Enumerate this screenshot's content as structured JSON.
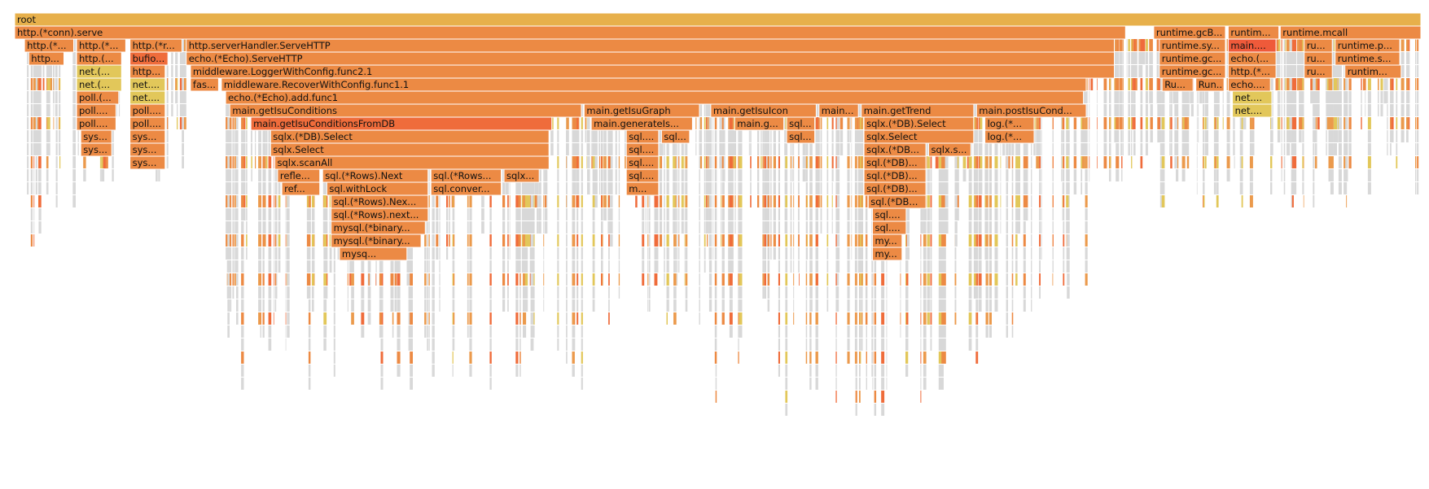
{
  "chart_data": {
    "type": "flamegraph",
    "title": "",
    "root": {
      "name": "root",
      "value": 1000
    },
    "colors": {
      "root": "#e7b04b",
      "frame": "#ec8a44",
      "frame_alt": "#eb9a4c",
      "frame_warm": "#ef6c3b",
      "frame_hot": "#ef5a3a",
      "frame_yellow": "#e2c75a",
      "sliver": "#d8d8d8"
    },
    "frames": [
      {
        "name": "root",
        "depth": 0,
        "start": 0,
        "value": 1000,
        "color": "root"
      },
      {
        "name": "http.(*conn).serve",
        "depth": 1,
        "start": 0,
        "value": 790,
        "color": "frame"
      },
      {
        "name": "runtime.gcB...",
        "depth": 1,
        "start": 810,
        "value": 51,
        "color": "frame"
      },
      {
        "name": "runtim...",
        "depth": 1,
        "start": 863,
        "value": 36,
        "color": "frame"
      },
      {
        "name": "runtime.mcall",
        "depth": 1,
        "start": 900,
        "value": 100,
        "color": "frame"
      },
      {
        "name": "http.(*...",
        "depth": 2,
        "start": 7,
        "value": 35,
        "color": "frame"
      },
      {
        "name": "http.(*...",
        "depth": 2,
        "start": 44,
        "value": 35,
        "color": "frame"
      },
      {
        "name": "http.(*r...",
        "depth": 2,
        "start": 82,
        "value": 37,
        "color": "frame"
      },
      {
        "name": "http.serverHandler.ServeHTTP",
        "depth": 2,
        "start": 122,
        "value": 660,
        "color": "frame"
      },
      {
        "name": "runtime.sy...",
        "depth": 2,
        "start": 814,
        "value": 47,
        "color": "frame"
      },
      {
        "name": "main....",
        "depth": 2,
        "start": 863,
        "value": 34,
        "color": "frame_hot"
      },
      {
        "name": "ru...",
        "depth": 2,
        "start": 917,
        "value": 20,
        "color": "frame"
      },
      {
        "name": "runtime.p...",
        "depth": 2,
        "start": 939,
        "value": 46,
        "color": "frame"
      },
      {
        "name": "http...",
        "depth": 3,
        "start": 10,
        "value": 25,
        "color": "frame"
      },
      {
        "name": "http.(...",
        "depth": 3,
        "start": 44,
        "value": 32,
        "color": "frame"
      },
      {
        "name": "bufio....",
        "depth": 3,
        "start": 82,
        "value": 27,
        "color": "frame_warm"
      },
      {
        "name": "echo.(*Echo).ServeHTTP",
        "depth": 3,
        "start": 122,
        "value": 660,
        "color": "frame"
      },
      {
        "name": "runtime.gc...",
        "depth": 3,
        "start": 814,
        "value": 47,
        "color": "frame"
      },
      {
        "name": "echo.(...",
        "depth": 3,
        "start": 863,
        "value": 34,
        "color": "frame"
      },
      {
        "name": "ru...",
        "depth": 3,
        "start": 917,
        "value": 20,
        "color": "frame"
      },
      {
        "name": "runtime.s...",
        "depth": 3,
        "start": 939,
        "value": 46,
        "color": "frame"
      },
      {
        "name": "net.(...",
        "depth": 4,
        "start": 44,
        "value": 32,
        "color": "frame_yellow"
      },
      {
        "name": "http...",
        "depth": 4,
        "start": 82,
        "value": 25,
        "color": "frame"
      },
      {
        "name": "middleware.LoggerWithConfig.func2.1",
        "depth": 4,
        "start": 125,
        "value": 657,
        "color": "frame"
      },
      {
        "name": "runtime.gc...",
        "depth": 4,
        "start": 814,
        "value": 47,
        "color": "frame"
      },
      {
        "name": "http.(*...",
        "depth": 4,
        "start": 863,
        "value": 34,
        "color": "frame"
      },
      {
        "name": "ru...",
        "depth": 4,
        "start": 917,
        "value": 20,
        "color": "frame"
      },
      {
        "name": "runtim...",
        "depth": 4,
        "start": 946,
        "value": 40,
        "color": "frame"
      },
      {
        "name": "net.(...",
        "depth": 5,
        "start": 44,
        "value": 32,
        "color": "frame_yellow"
      },
      {
        "name": "net....",
        "depth": 5,
        "start": 82,
        "value": 25,
        "color": "frame_yellow"
      },
      {
        "name": "fas...",
        "depth": 5,
        "start": 125,
        "value": 20,
        "color": "frame"
      },
      {
        "name": "middleware.RecoverWithConfig.func1.1",
        "depth": 5,
        "start": 147,
        "value": 615,
        "color": "frame"
      },
      {
        "name": "Ru...",
        "depth": 5,
        "start": 816,
        "value": 22,
        "color": "frame"
      },
      {
        "name": "Run...",
        "depth": 5,
        "start": 840,
        "value": 20,
        "color": "frame"
      },
      {
        "name": "echo....",
        "depth": 5,
        "start": 863,
        "value": 30,
        "color": "frame"
      },
      {
        "name": "poll.(...",
        "depth": 6,
        "start": 44,
        "value": 30,
        "color": "frame"
      },
      {
        "name": "net....",
        "depth": 6,
        "start": 82,
        "value": 25,
        "color": "frame_yellow"
      },
      {
        "name": "echo.(*Echo).add.func1",
        "depth": 6,
        "start": 150,
        "value": 610,
        "color": "frame"
      },
      {
        "name": "net....",
        "depth": 6,
        "start": 866,
        "value": 28,
        "color": "frame_yellow"
      },
      {
        "name": "poll....",
        "depth": 7,
        "start": 44,
        "value": 28,
        "color": "frame"
      },
      {
        "name": "poll....",
        "depth": 7,
        "start": 82,
        "value": 25,
        "color": "frame"
      },
      {
        "name": "main.getIsuConditions",
        "depth": 7,
        "start": 153,
        "value": 250,
        "color": "frame"
      },
      {
        "name": "main.getIsuGraph",
        "depth": 7,
        "start": 405,
        "value": 82,
        "color": "frame"
      },
      {
        "name": "main.getIsuIcon",
        "depth": 7,
        "start": 495,
        "value": 75,
        "color": "frame"
      },
      {
        "name": "main....",
        "depth": 7,
        "start": 572,
        "value": 28,
        "color": "frame"
      },
      {
        "name": "main.getTrend",
        "depth": 7,
        "start": 602,
        "value": 80,
        "color": "frame"
      },
      {
        "name": "main.postIsuCond...",
        "depth": 7,
        "start": 684,
        "value": 78,
        "color": "frame"
      },
      {
        "name": "net....",
        "depth": 7,
        "start": 866,
        "value": 28,
        "color": "frame_yellow"
      },
      {
        "name": "poll....",
        "depth": 8,
        "start": 44,
        "value": 28,
        "color": "frame"
      },
      {
        "name": "poll....",
        "depth": 8,
        "start": 82,
        "value": 25,
        "color": "frame"
      },
      {
        "name": "main.getIsuConditionsFromDB",
        "depth": 8,
        "start": 168,
        "value": 214,
        "color": "frame_warm"
      },
      {
        "name": "main.generateIs...",
        "depth": 8,
        "start": 410,
        "value": 72,
        "color": "frame"
      },
      {
        "name": "main.g...",
        "depth": 8,
        "start": 512,
        "value": 35,
        "color": "frame"
      },
      {
        "name": "sql....",
        "depth": 8,
        "start": 549,
        "value": 20,
        "color": "frame"
      },
      {
        "name": "sqlx.(*DB).Select",
        "depth": 8,
        "start": 604,
        "value": 78,
        "color": "frame"
      },
      {
        "name": "log.(*...",
        "depth": 8,
        "start": 690,
        "value": 35,
        "color": "frame"
      },
      {
        "name": "sys...",
        "depth": 9,
        "start": 47,
        "value": 22,
        "color": "frame"
      },
      {
        "name": "sys...",
        "depth": 9,
        "start": 82,
        "value": 25,
        "color": "frame"
      },
      {
        "name": "sqlx.(*DB).Select",
        "depth": 9,
        "start": 182,
        "value": 198,
        "color": "frame"
      },
      {
        "name": "sql....",
        "depth": 9,
        "start": 435,
        "value": 23,
        "color": "frame"
      },
      {
        "name": "sql....",
        "depth": 9,
        "start": 460,
        "value": 20,
        "color": "frame"
      },
      {
        "name": "sql....",
        "depth": 9,
        "start": 549,
        "value": 20,
        "color": "frame"
      },
      {
        "name": "sqlx.Select",
        "depth": 9,
        "start": 604,
        "value": 78,
        "color": "frame"
      },
      {
        "name": "log.(*...",
        "depth": 9,
        "start": 690,
        "value": 35,
        "color": "frame"
      },
      {
        "name": "sys...",
        "depth": 10,
        "start": 47,
        "value": 22,
        "color": "frame"
      },
      {
        "name": "sys...",
        "depth": 10,
        "start": 82,
        "value": 25,
        "color": "frame"
      },
      {
        "name": "sqlx.Select",
        "depth": 10,
        "start": 182,
        "value": 198,
        "color": "frame"
      },
      {
        "name": "sql....",
        "depth": 10,
        "start": 435,
        "value": 23,
        "color": "frame"
      },
      {
        "name": "sqlx.(*DB...",
        "depth": 10,
        "start": 604,
        "value": 44,
        "color": "frame"
      },
      {
        "name": "sqlx.s...",
        "depth": 10,
        "start": 650,
        "value": 30,
        "color": "frame"
      },
      {
        "name": "sys...",
        "depth": 11,
        "start": 82,
        "value": 25,
        "color": "frame"
      },
      {
        "name": "sqlx.scanAll",
        "depth": 11,
        "start": 185,
        "value": 195,
        "color": "frame"
      },
      {
        "name": "sql....",
        "depth": 11,
        "start": 435,
        "value": 23,
        "color": "frame"
      },
      {
        "name": "sql.(*DB)...",
        "depth": 11,
        "start": 604,
        "value": 44,
        "color": "frame"
      },
      {
        "name": "refle...",
        "depth": 12,
        "start": 187,
        "value": 30,
        "color": "frame"
      },
      {
        "name": "sql.(*Rows).Next",
        "depth": 12,
        "start": 219,
        "value": 75,
        "color": "frame"
      },
      {
        "name": "sql.(*Rows...",
        "depth": 12,
        "start": 296,
        "value": 50,
        "color": "frame"
      },
      {
        "name": "sqlx...",
        "depth": 12,
        "start": 348,
        "value": 25,
        "color": "frame"
      },
      {
        "name": "sql....",
        "depth": 12,
        "start": 435,
        "value": 23,
        "color": "frame"
      },
      {
        "name": "sql.(*DB)...",
        "depth": 12,
        "start": 604,
        "value": 44,
        "color": "frame"
      },
      {
        "name": "ref...",
        "depth": 13,
        "start": 190,
        "value": 27,
        "color": "frame"
      },
      {
        "name": "sql.withLock",
        "depth": 13,
        "start": 222,
        "value": 72,
        "color": "frame"
      },
      {
        "name": "sql.conver...",
        "depth": 13,
        "start": 296,
        "value": 50,
        "color": "frame"
      },
      {
        "name": "m...",
        "depth": 13,
        "start": 435,
        "value": 23,
        "color": "frame"
      },
      {
        "name": "sql.(*DB)...",
        "depth": 13,
        "start": 604,
        "value": 44,
        "color": "frame"
      },
      {
        "name": "sql.(*Rows).Nex...",
        "depth": 14,
        "start": 225,
        "value": 69,
        "color": "frame"
      },
      {
        "name": "sql.(*DB...",
        "depth": 14,
        "start": 607,
        "value": 41,
        "color": "frame"
      },
      {
        "name": "sql.(*Rows).next...",
        "depth": 15,
        "start": 225,
        "value": 69,
        "color": "frame"
      },
      {
        "name": "sql....",
        "depth": 15,
        "start": 610,
        "value": 24,
        "color": "frame"
      },
      {
        "name": "mysql.(*binary...",
        "depth": 16,
        "start": 225,
        "value": 67,
        "color": "frame"
      },
      {
        "name": "sql....",
        "depth": 16,
        "start": 610,
        "value": 24,
        "color": "frame"
      },
      {
        "name": "mysql.(*binary...",
        "depth": 17,
        "start": 225,
        "value": 64,
        "color": "frame"
      },
      {
        "name": "my...",
        "depth": 17,
        "start": 610,
        "value": 21,
        "color": "frame"
      },
      {
        "name": "mysq...",
        "depth": 18,
        "start": 231,
        "value": 48,
        "color": "frame"
      },
      {
        "name": "my...",
        "depth": 18,
        "start": 610,
        "value": 21,
        "color": "frame"
      }
    ]
  }
}
